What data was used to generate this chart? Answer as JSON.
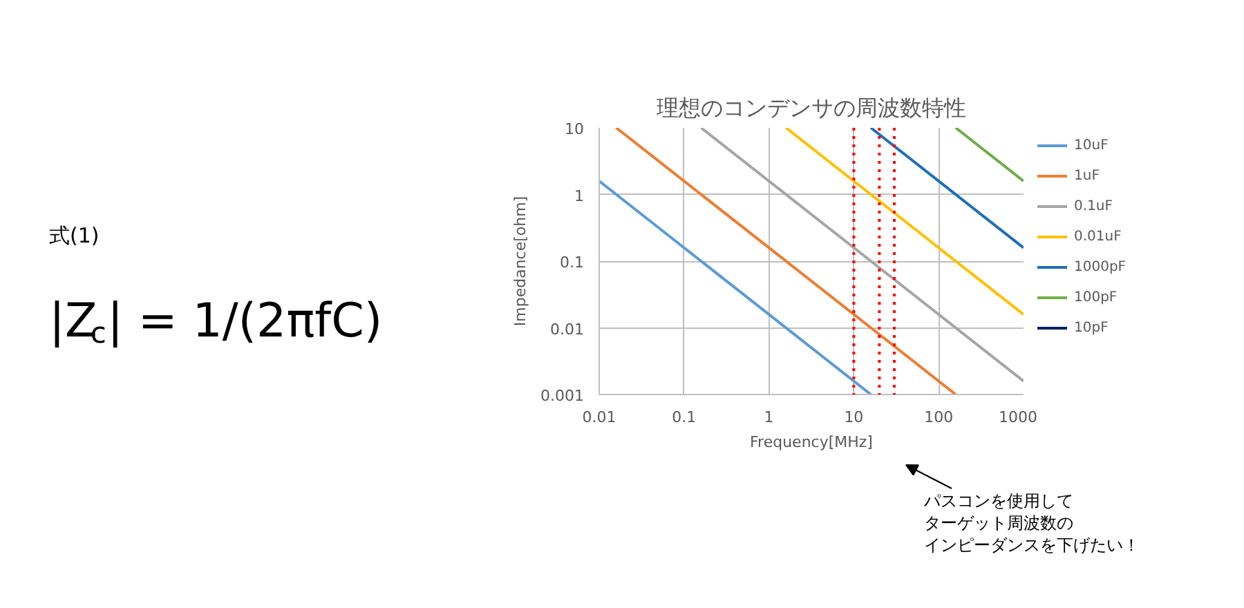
{
  "chart_data": {
    "type": "line",
    "title": "理想のコンデンサの周波数特性",
    "xlabel": "Frequency[MHz]",
    "ylabel": "Impedance[ohm]",
    "log": "xy",
    "grid": true,
    "legend": "right",
    "line_style": "solid",
    "xlim": [
      0.01,
      1000
    ],
    "ylim": [
      0.001,
      10
    ],
    "xticks": [
      0.01,
      0.1,
      1,
      10,
      100,
      1000
    ],
    "yticks": [
      0.001,
      0.01,
      0.1,
      1,
      10
    ],
    "series": [
      {
        "name": "10uF",
        "color": "#5b9bd5",
        "x": [
          0.01,
          15.9
        ],
        "values": [
          1.59,
          0.001
        ]
      },
      {
        "name": "1uF",
        "color": "#ed7d31",
        "x": [
          0.0159,
          159
        ],
        "values": [
          10,
          0.001
        ]
      },
      {
        "name": "0.1uF",
        "color": "#a5a5a5",
        "x": [
          0.159,
          1000
        ],
        "values": [
          10,
          0.00159
        ]
      },
      {
        "name": "0.01uF",
        "color": "#ffc000",
        "x": [
          1.59,
          1000
        ],
        "values": [
          10,
          0.0159
        ]
      },
      {
        "name": "1000pF",
        "color": "#1f6fb5",
        "x": [
          15.9,
          1000
        ],
        "values": [
          10,
          0.159
        ]
      },
      {
        "name": "100pF",
        "color": "#70ad47",
        "x": [
          159,
          1000
        ],
        "values": [
          10,
          1.59
        ]
      },
      {
        "name": "10pF",
        "color": "#002060"
      }
    ],
    "ref_lines": [
      {
        "axis": "x",
        "value": 10,
        "color": "#ff0000",
        "line_style": "dotted"
      },
      {
        "axis": "x",
        "value": 20,
        "color": "#ff0000",
        "line_style": "dotted"
      },
      {
        "axis": "x",
        "value": 30,
        "color": "#ff0000",
        "line_style": "dotted"
      }
    ],
    "annotations": [
      "式(1)",
      "|Z$_{c}$| = 1/(2πfC)",
      "パスコンを使用して",
      "ターゲット周波数の",
      "インピーダンスを下げたい！"
    ]
  }
}
